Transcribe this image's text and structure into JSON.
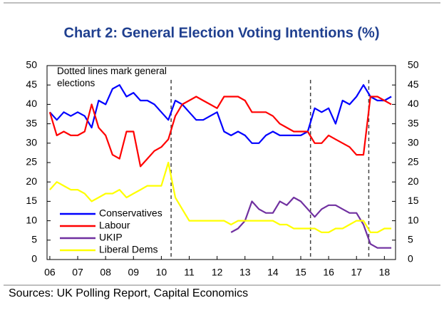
{
  "chart_data": {
    "type": "line",
    "title": "Chart 2: General Election Voting Intentions (%)",
    "annotation": "Dotted lines mark general elections",
    "source": "Sources: UK Polling Report, Capital Economics",
    "x": [
      6,
      6.25,
      6.5,
      6.75,
      7,
      7.25,
      7.5,
      7.75,
      8,
      8.25,
      8.5,
      8.75,
      9,
      9.25,
      9.5,
      9.75,
      10,
      10.25,
      10.5,
      10.75,
      11,
      11.25,
      11.5,
      11.75,
      12,
      12.25,
      12.5,
      12.75,
      13,
      13.25,
      13.5,
      13.75,
      14,
      14.25,
      14.5,
      14.75,
      15,
      15.25,
      15.5,
      15.75,
      16,
      16.25,
      16.5,
      16.75,
      17,
      17.25,
      17.5,
      17.75,
      18,
      18.25
    ],
    "series": [
      {
        "name": "Conservatives",
        "color": "#0000ff",
        "values": [
          38,
          36,
          38,
          37,
          38,
          37,
          34,
          41,
          40,
          44,
          45,
          42,
          43,
          41,
          41,
          40,
          38,
          36,
          41,
          40,
          38,
          36,
          36,
          37,
          38,
          33,
          32,
          33,
          32,
          30,
          30,
          32,
          33,
          32,
          32,
          32,
          32,
          33,
          39,
          38,
          39,
          35,
          41,
          40,
          42,
          45,
          42,
          41,
          41,
          42
        ]
      },
      {
        "name": "Labour",
        "color": "#ff0000",
        "values": [
          38,
          32,
          33,
          32,
          32,
          33,
          40,
          34,
          32,
          27,
          26,
          33,
          33,
          24,
          26,
          28,
          29,
          31,
          37,
          40,
          41,
          42,
          41,
          40,
          39,
          42,
          42,
          42,
          41,
          38,
          38,
          38,
          37,
          35,
          34,
          33,
          33,
          33,
          30,
          30,
          32,
          31,
          30,
          29,
          27,
          27,
          42,
          42,
          41,
          40
        ]
      },
      {
        "name": "UKIP",
        "color": "#7030a0",
        "values": [
          null,
          null,
          null,
          null,
          null,
          null,
          null,
          null,
          null,
          null,
          null,
          null,
          null,
          null,
          null,
          null,
          null,
          null,
          null,
          null,
          null,
          null,
          null,
          null,
          null,
          null,
          7,
          8,
          10,
          15,
          13,
          12,
          12,
          15,
          14,
          16,
          15,
          13,
          11,
          13,
          14,
          14,
          13,
          12,
          12,
          9,
          4,
          3,
          3,
          3
        ]
      },
      {
        "name": "Liberal Dems",
        "color": "#ffff00",
        "values": [
          18,
          20,
          19,
          18,
          18,
          17,
          15,
          16,
          17,
          17,
          18,
          16,
          17,
          18,
          19,
          19,
          19,
          25,
          16,
          13,
          10,
          10,
          10,
          10,
          10,
          10,
          9,
          10,
          10,
          10,
          10,
          10,
          10,
          9,
          9,
          8,
          8,
          8,
          8,
          7,
          7,
          8,
          8,
          9,
          10,
          10,
          7,
          7,
          8,
          8
        ]
      }
    ],
    "election_lines": [
      10.35,
      15.35,
      17.44
    ],
    "xlim": [
      5.9,
      18.4
    ],
    "xticks": [
      {
        "value": 6,
        "label": "06"
      },
      {
        "value": 7,
        "label": "07"
      },
      {
        "value": 8,
        "label": "08"
      },
      {
        "value": 9,
        "label": "09"
      },
      10,
      11,
      12,
      13,
      14,
      15,
      16,
      17,
      18
    ],
    "ylim": [
      0,
      50
    ],
    "yticks": [
      0,
      5,
      10,
      15,
      20,
      25,
      30,
      35,
      40,
      45,
      50
    ],
    "y2lim": [
      0,
      50
    ],
    "y2ticks": [
      0,
      5,
      10,
      15,
      20,
      25,
      30,
      35,
      40,
      45,
      50
    ]
  }
}
